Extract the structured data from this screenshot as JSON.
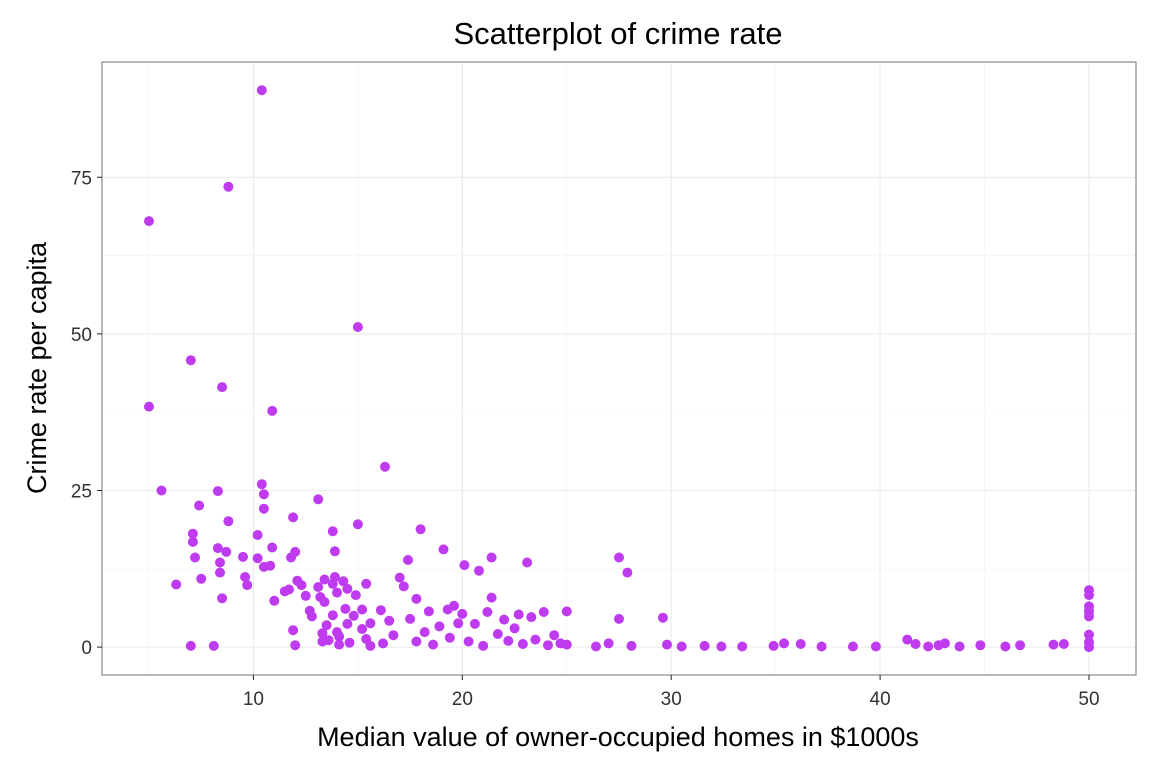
{
  "chart_data": {
    "type": "scatter",
    "title": "Scatterplot of crime rate",
    "xlabel": "Median value of owner-occupied homes in $1000s",
    "ylabel": "Crime rate per capita",
    "xlim": [
      2.75,
      52.25
    ],
    "ylim": [
      -4.45,
      93.4
    ],
    "x_ticks": [
      10,
      20,
      30,
      40,
      50
    ],
    "y_ticks": [
      0,
      25,
      50,
      75
    ],
    "grid": true,
    "point_color": "#BE3BF0",
    "points": [
      [
        5.0,
        68.0
      ],
      [
        5.0,
        38.4
      ],
      [
        5.6,
        25.0
      ],
      [
        6.3,
        10.0
      ],
      [
        7.0,
        0.2
      ],
      [
        7.0,
        45.8
      ],
      [
        7.1,
        18.1
      ],
      [
        7.1,
        16.8
      ],
      [
        7.2,
        14.3
      ],
      [
        7.4,
        22.6
      ],
      [
        7.5,
        10.9
      ],
      [
        8.1,
        0.2
      ],
      [
        8.3,
        24.9
      ],
      [
        8.3,
        15.8
      ],
      [
        8.4,
        13.5
      ],
      [
        8.4,
        11.9
      ],
      [
        8.5,
        41.5
      ],
      [
        8.5,
        7.8
      ],
      [
        8.7,
        15.2
      ],
      [
        8.8,
        73.5
      ],
      [
        8.8,
        20.1
      ],
      [
        9.5,
        14.4
      ],
      [
        9.6,
        11.2
      ],
      [
        9.7,
        9.9
      ],
      [
        10.2,
        17.9
      ],
      [
        10.2,
        14.2
      ],
      [
        10.4,
        88.9
      ],
      [
        10.4,
        26.0
      ],
      [
        10.5,
        24.4
      ],
      [
        10.5,
        22.1
      ],
      [
        10.5,
        12.8
      ],
      [
        10.8,
        13.0
      ],
      [
        10.9,
        15.9
      ],
      [
        10.9,
        37.7
      ],
      [
        11.0,
        7.4
      ],
      [
        11.5,
        8.9
      ],
      [
        11.7,
        9.2
      ],
      [
        11.8,
        14.3
      ],
      [
        11.9,
        20.7
      ],
      [
        11.9,
        2.7
      ],
      [
        12.0,
        15.2
      ],
      [
        12.0,
        0.3
      ],
      [
        12.1,
        10.6
      ],
      [
        12.3,
        9.9
      ],
      [
        12.5,
        8.2
      ],
      [
        12.7,
        5.8
      ],
      [
        12.8,
        4.9
      ],
      [
        13.1,
        9.6
      ],
      [
        13.1,
        23.6
      ],
      [
        13.2,
        8.0
      ],
      [
        13.3,
        2.2
      ],
      [
        13.3,
        0.9
      ],
      [
        13.4,
        10.8
      ],
      [
        13.4,
        7.2
      ],
      [
        13.5,
        3.5
      ],
      [
        13.6,
        1.1
      ],
      [
        13.8,
        18.5
      ],
      [
        13.8,
        10.1
      ],
      [
        13.8,
        5.1
      ],
      [
        13.9,
        15.3
      ],
      [
        13.9,
        11.2
      ],
      [
        14.0,
        8.7
      ],
      [
        14.0,
        2.4
      ],
      [
        14.1,
        0.4
      ],
      [
        14.1,
        1.7
      ],
      [
        14.3,
        10.5
      ],
      [
        14.4,
        6.1
      ],
      [
        14.5,
        9.3
      ],
      [
        14.5,
        3.7
      ],
      [
        14.6,
        0.7
      ],
      [
        14.8,
        5.0
      ],
      [
        14.9,
        8.3
      ],
      [
        15.0,
        51.1
      ],
      [
        15.0,
        19.6
      ],
      [
        15.2,
        6.0
      ],
      [
        15.2,
        2.9
      ],
      [
        15.4,
        10.1
      ],
      [
        15.4,
        1.3
      ],
      [
        15.6,
        0.2
      ],
      [
        15.6,
        3.8
      ],
      [
        16.1,
        5.9
      ],
      [
        16.2,
        0.6
      ],
      [
        16.3,
        28.8
      ],
      [
        16.5,
        4.2
      ],
      [
        16.7,
        1.9
      ],
      [
        17.0,
        11.1
      ],
      [
        17.2,
        9.7
      ],
      [
        17.4,
        13.9
      ],
      [
        17.5,
        4.5
      ],
      [
        17.8,
        7.7
      ],
      [
        17.8,
        0.9
      ],
      [
        18.0,
        18.8
      ],
      [
        18.2,
        2.4
      ],
      [
        18.4,
        5.7
      ],
      [
        18.6,
        0.4
      ],
      [
        18.9,
        3.3
      ],
      [
        19.1,
        15.6
      ],
      [
        19.3,
        6.0
      ],
      [
        19.4,
        1.5
      ],
      [
        19.6,
        6.6
      ],
      [
        19.8,
        3.8
      ],
      [
        20.0,
        5.3
      ],
      [
        20.1,
        13.1
      ],
      [
        20.3,
        0.9
      ],
      [
        20.6,
        3.7
      ],
      [
        20.8,
        12.2
      ],
      [
        21.0,
        0.2
      ],
      [
        21.2,
        5.6
      ],
      [
        21.4,
        14.3
      ],
      [
        21.4,
        7.9
      ],
      [
        21.7,
        2.1
      ],
      [
        22.0,
        4.4
      ],
      [
        22.2,
        1.0
      ],
      [
        22.5,
        3.0
      ],
      [
        22.7,
        5.2
      ],
      [
        22.9,
        0.5
      ],
      [
        23.1,
        13.5
      ],
      [
        23.3,
        4.8
      ],
      [
        23.5,
        1.2
      ],
      [
        23.9,
        5.6
      ],
      [
        24.1,
        0.3
      ],
      [
        24.4,
        1.9
      ],
      [
        24.7,
        0.6
      ],
      [
        25.0,
        5.7
      ],
      [
        25.0,
        0.4
      ],
      [
        26.4,
        0.1
      ],
      [
        27.0,
        0.6
      ],
      [
        27.5,
        14.3
      ],
      [
        27.5,
        4.5
      ],
      [
        27.9,
        11.9
      ],
      [
        28.1,
        0.2
      ],
      [
        29.6,
        4.7
      ],
      [
        29.8,
        0.4
      ],
      [
        30.5,
        0.1
      ],
      [
        31.6,
        0.2
      ],
      [
        32.4,
        0.1
      ],
      [
        33.4,
        0.1
      ],
      [
        34.9,
        0.2
      ],
      [
        35.4,
        0.6
      ],
      [
        36.2,
        0.5
      ],
      [
        37.2,
        0.1
      ],
      [
        38.7,
        0.1
      ],
      [
        39.8,
        0.1
      ],
      [
        41.3,
        1.2
      ],
      [
        41.7,
        0.5
      ],
      [
        42.3,
        0.1
      ],
      [
        42.8,
        0.3
      ],
      [
        43.1,
        0.6
      ],
      [
        43.8,
        0.1
      ],
      [
        44.8,
        0.3
      ],
      [
        46.0,
        0.1
      ],
      [
        46.7,
        0.3
      ],
      [
        48.3,
        0.4
      ],
      [
        48.8,
        0.5
      ],
      [
        50.0,
        0.0
      ],
      [
        50.0,
        0.8
      ],
      [
        50.0,
        2.0
      ],
      [
        50.0,
        4.9
      ],
      [
        50.0,
        5.7
      ],
      [
        50.0,
        6.5
      ],
      [
        50.0,
        8.3
      ],
      [
        50.0,
        9.1
      ]
    ]
  }
}
